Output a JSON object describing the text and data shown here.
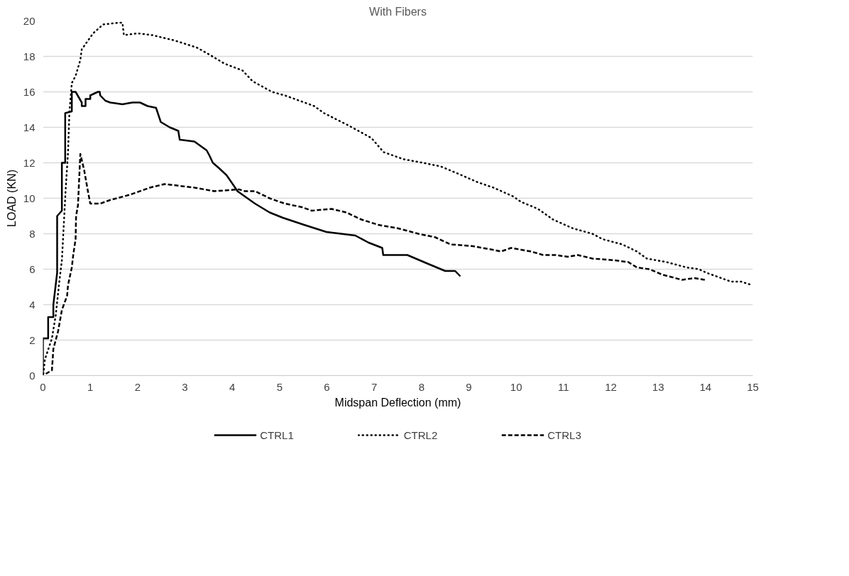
{
  "chart_data": {
    "type": "line",
    "title": "With Fibers",
    "xlabel": "Midspan Deflection (mm)",
    "ylabel": "LOAD (KN)",
    "xlim": [
      0,
      15
    ],
    "ylim": [
      0,
      20
    ],
    "xticks": [
      0,
      1,
      2,
      3,
      4,
      5,
      6,
      7,
      8,
      9,
      10,
      11,
      12,
      13,
      14,
      15
    ],
    "yticks": [
      0,
      2,
      4,
      6,
      8,
      10,
      12,
      14,
      16,
      18,
      20
    ],
    "grid": "y",
    "legend": "bottom",
    "series": [
      {
        "name": "CTRL1",
        "color": "#000000",
        "line_style": "solid",
        "x": [
          0,
          0,
          0.11,
          0.11,
          0.22,
          0.22,
          0.3,
          0.3,
          0.4,
          0.4,
          0.47,
          0.47,
          0.61,
          0.61,
          0.69,
          0.82,
          0.82,
          0.9,
          0.9,
          1.0,
          1.0,
          1.16,
          1.2,
          1.21,
          1.32,
          1.42,
          1.68,
          1.89,
          2.05,
          2.21,
          2.39,
          2.49,
          2.68,
          2.86,
          2.89,
          3.2,
          3.46,
          3.52,
          3.59,
          3.72,
          3.88,
          4.01,
          4.11,
          4.48,
          4.79,
          5.07,
          5.52,
          5.99,
          6.6,
          6.88,
          7.17,
          7.19,
          7.7,
          8.14,
          8.5,
          8.71,
          8.82
        ],
        "values": [
          0,
          2.1,
          2.1,
          3.3,
          3.3,
          4.0,
          5.8,
          9.0,
          9.3,
          12.0,
          12.0,
          14.8,
          14.9,
          16.0,
          16.0,
          15.4,
          15.2,
          15.2,
          15.6,
          15.6,
          15.8,
          16.0,
          16.0,
          15.8,
          15.5,
          15.4,
          15.3,
          15.4,
          15.4,
          15.2,
          15.1,
          14.3,
          14.0,
          13.8,
          13.3,
          13.2,
          12.7,
          12.4,
          12.0,
          11.7,
          11.3,
          10.8,
          10.4,
          9.7,
          9.2,
          8.9,
          8.5,
          8.1,
          7.9,
          7.5,
          7.2,
          6.8,
          6.8,
          6.3,
          5.9,
          5.9,
          5.6
        ]
      },
      {
        "name": "CTRL2",
        "color": "#000000",
        "line_style": "dotted",
        "x": [
          0.01,
          0.04,
          0.19,
          0.27,
          0.35,
          0.4,
          0.48,
          0.53,
          0.56,
          0.61,
          0.69,
          0.79,
          0.82,
          1.06,
          1.27,
          1.61,
          1.68,
          1.71,
          2.0,
          2.31,
          2.78,
          3.25,
          3.52,
          3.83,
          4.22,
          4.43,
          4.84,
          5.11,
          5.32,
          5.73,
          5.94,
          6.46,
          6.94,
          7.2,
          7.62,
          8.03,
          8.4,
          8.76,
          9.19,
          9.52,
          9.94,
          10.1,
          10.46,
          10.78,
          11.2,
          11.61,
          11.82,
          12.24,
          12.55,
          12.76,
          13.18,
          13.6,
          13.86,
          14.02,
          14.54,
          14.75,
          14.99
        ],
        "values": [
          0.1,
          0.9,
          2.1,
          3.4,
          5.4,
          6.5,
          10.5,
          12.6,
          14.9,
          16.5,
          16.9,
          17.8,
          18.4,
          19.3,
          19.8,
          19.9,
          19.9,
          19.2,
          19.3,
          19.2,
          18.9,
          18.5,
          18.1,
          17.6,
          17.2,
          16.6,
          16.0,
          15.8,
          15.6,
          15.2,
          14.8,
          14.1,
          13.4,
          12.6,
          12.2,
          12.0,
          11.8,
          11.4,
          10.9,
          10.6,
          10.1,
          9.8,
          9.4,
          8.8,
          8.3,
          8.0,
          7.7,
          7.4,
          7.0,
          6.6,
          6.4,
          6.1,
          6.0,
          5.8,
          5.3,
          5.3,
          5.1
        ]
      },
      {
        "name": "CTRL3",
        "color": "#000000",
        "line_style": "dashed",
        "x": [
          0.06,
          0.19,
          0.22,
          0.32,
          0.4,
          0.51,
          0.53,
          0.61,
          0.64,
          0.69,
          0.7,
          0.74,
          0.79,
          0.87,
          0.95,
          1.0,
          1.21,
          1.42,
          1.84,
          2.26,
          2.57,
          2.89,
          3.2,
          3.62,
          4.14,
          4.27,
          4.48,
          4.79,
          5.11,
          5.47,
          5.68,
          6.1,
          6.41,
          6.73,
          7.09,
          7.51,
          7.93,
          8.29,
          8.61,
          9.08,
          9.5,
          9.68,
          9.89,
          10.1,
          10.31,
          10.57,
          10.83,
          11.09,
          11.3,
          11.61,
          12.09,
          12.37,
          12.55,
          12.82,
          13.08,
          13.5,
          13.76,
          13.99
        ],
        "values": [
          0.1,
          0.3,
          1.5,
          2.5,
          3.7,
          4.5,
          5.1,
          6.1,
          6.8,
          7.7,
          9.0,
          9.6,
          12.5,
          11.6,
          10.4,
          9.7,
          9.7,
          9.9,
          10.2,
          10.6,
          10.8,
          10.7,
          10.6,
          10.4,
          10.5,
          10.4,
          10.4,
          10.0,
          9.7,
          9.5,
          9.3,
          9.4,
          9.2,
          8.8,
          8.5,
          8.3,
          8.0,
          7.8,
          7.4,
          7.3,
          7.1,
          7.0,
          7.2,
          7.1,
          7.0,
          6.8,
          6.8,
          6.7,
          6.8,
          6.6,
          6.5,
          6.4,
          6.1,
          6.0,
          5.7,
          5.4,
          5.5,
          5.4
        ]
      }
    ]
  }
}
